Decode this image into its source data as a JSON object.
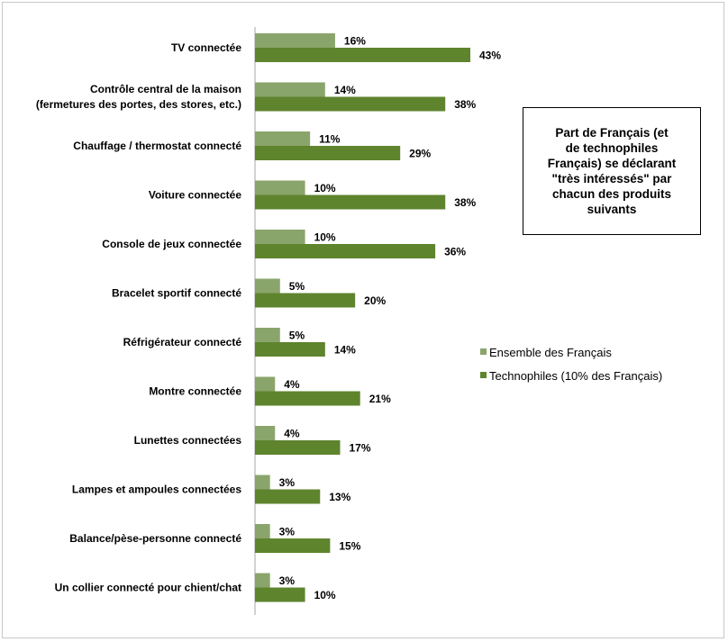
{
  "chart_data": {
    "type": "bar",
    "orientation": "horizontal",
    "categories": [
      [
        "TV connectée"
      ],
      [
        "Contrôle central de la maison",
        "(fermetures des portes,  des stores, etc.)"
      ],
      [
        "Chauffage / thermostat connecté"
      ],
      [
        "Voiture connectée"
      ],
      [
        "Console de jeux connectée"
      ],
      [
        "Bracelet sportif connecté"
      ],
      [
        "Réfrigérateur connecté"
      ],
      [
        "Montre connectée"
      ],
      [
        "Lunettes connectées"
      ],
      [
        "Lampes et ampoules connectées"
      ],
      [
        "Balance/pèse-personne connecté"
      ],
      [
        "Un collier connecté pour chient/chat"
      ]
    ],
    "series": [
      {
        "name": "Ensemble des Français",
        "color": "#8aa56b",
        "values": [
          16,
          14,
          11,
          10,
          10,
          5,
          5,
          4,
          4,
          3,
          3,
          3
        ],
        "labels": [
          "16%",
          "14%",
          "11%",
          "10%",
          "10%",
          "5%",
          "5%",
          "4%",
          "4%",
          "3%",
          "3%",
          "3%"
        ]
      },
      {
        "name": "Technophiles (10% des Français)",
        "color": "#5e842e",
        "values": [
          43,
          38,
          29,
          38,
          36,
          20,
          14,
          21,
          17,
          13,
          15,
          10
        ],
        "labels": [
          "43%",
          "38%",
          "29%",
          "38%",
          "36%",
          "20%",
          "14%",
          "21%",
          "17%",
          "13%",
          "15%",
          "10%"
        ]
      }
    ],
    "xlim": [
      0,
      43
    ],
    "grid": false,
    "legend_position": "right",
    "annotation": "Part de Français (et\nde technophiles\nFrançais) se déclarant\n\"très intéressés\" par\nchacun des produits\nsuivants"
  }
}
